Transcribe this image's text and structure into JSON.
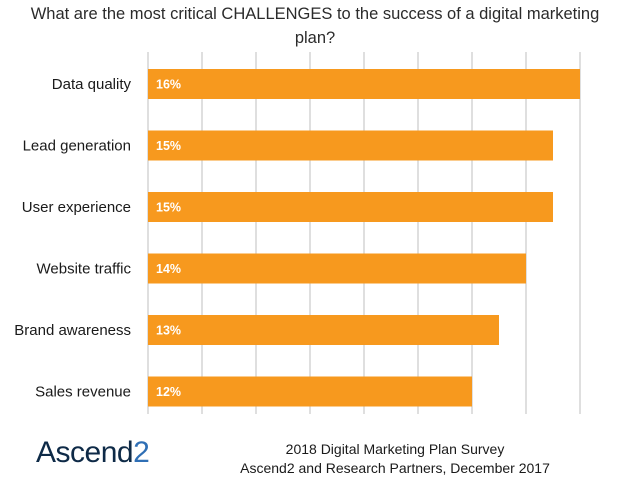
{
  "chart_data": {
    "type": "bar",
    "orientation": "horizontal",
    "title": "What are the most critical CHALLENGES to the success of a digital marketing plan?",
    "categories": [
      "Data quality",
      "Lead generation",
      "User experience",
      "Website traffic",
      "Brand awareness",
      "Sales revenue"
    ],
    "values": [
      16,
      15,
      15,
      14,
      13,
      12
    ],
    "value_labels": [
      "16%",
      "15%",
      "15%",
      "14%",
      "13%",
      "12%"
    ],
    "unit": "%",
    "xlim": [
      0,
      16
    ],
    "grid": true,
    "legend": "none",
    "bar_color": "#f7991e"
  },
  "footer": {
    "logo_text": "Ascend",
    "logo_number": "2",
    "source_line1": "2018 Digital Marketing Plan Survey",
    "source_line2": "Ascend2 and Research Partners, December 2017"
  },
  "colors": {
    "bar": "#f7991e",
    "logo_dark": "#0e2a47",
    "logo_accent": "#2f6fb5"
  }
}
